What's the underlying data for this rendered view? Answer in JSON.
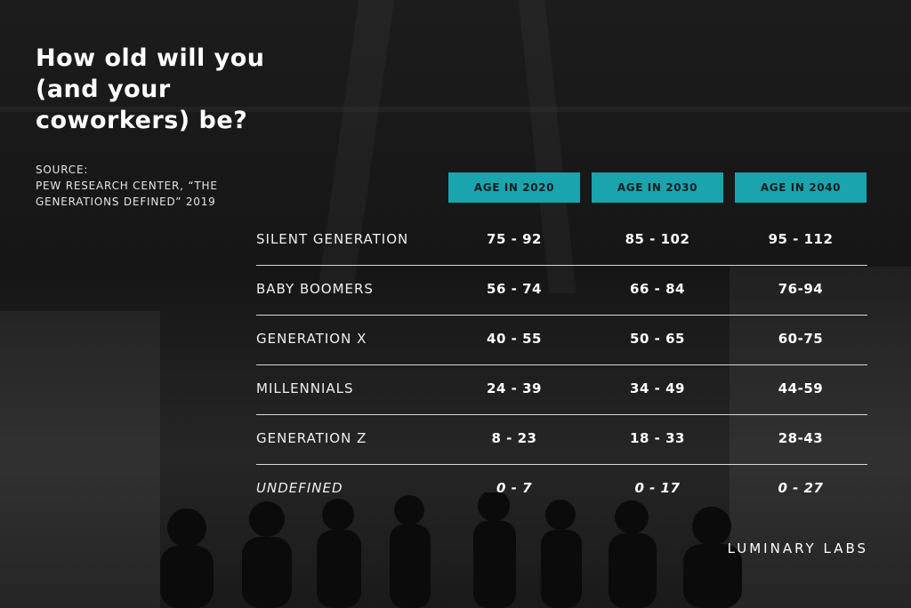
{
  "title": "How old will you (and your coworkers) be?",
  "source": {
    "lines": [
      "SOURCE:",
      "PEW RESEARCH CENTER, “THE",
      "GENERATIONS DEFINED” 2019"
    ]
  },
  "columns": [
    "AGE IN 2020",
    "AGE IN 2030",
    "AGE IN 2040"
  ],
  "rows": [
    {
      "label": "SILENT GENERATION",
      "values": [
        "75 - 92",
        "85 - 102",
        "95 - 112"
      ]
    },
    {
      "label": "BABY BOOMERS",
      "values": [
        "56 - 74",
        "66 - 84",
        "76-94"
      ]
    },
    {
      "label": "GENERATION X",
      "values": [
        "40 - 55",
        "50 - 65",
        "60-75"
      ]
    },
    {
      "label": "MILLENNIALS",
      "values": [
        "24 - 39",
        "34 - 49",
        "44-59"
      ]
    },
    {
      "label": "GENERATION Z",
      "values": [
        "8 - 23",
        "18 - 33",
        "28-43"
      ]
    },
    {
      "label": "UNDEFINED",
      "values": [
        "0 - 7",
        "0 - 17",
        "0 - 27"
      ]
    }
  ],
  "brand": "LUMINARY LABS",
  "colors": {
    "accent": "#1aa4ad"
  }
}
